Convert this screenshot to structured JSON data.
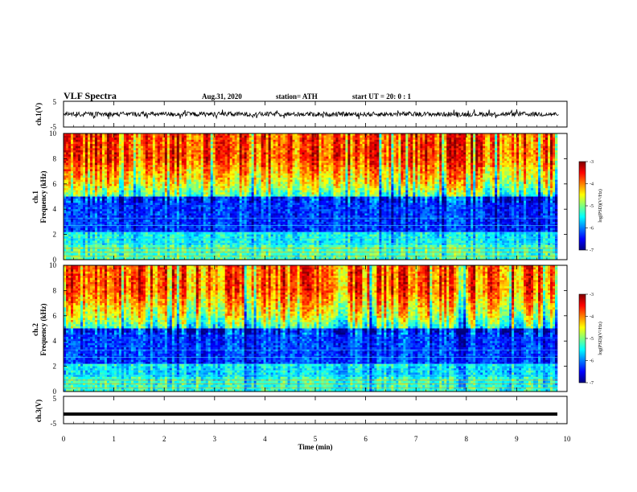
{
  "header": {
    "title": "VLF Spectra",
    "date": "Aug.31, 2020",
    "station": "station= ATH",
    "start": "start UT =  20: 0  : 1"
  },
  "chart_data": [
    {
      "type": "line",
      "id": "ch1-waveform",
      "ylabel": "ch.1(V)",
      "yticks": [
        "5",
        "-5"
      ],
      "ylim": [
        -5,
        5
      ],
      "x_range_min": [
        0,
        9.83
      ],
      "description_values": "noisy waveform roughly within -2..2 V"
    },
    {
      "type": "heatmap",
      "id": "ch1-spectrogram",
      "ylabel": "ch.1\nFrequency (kHz)",
      "ylabel_lines": [
        "ch.1",
        "Frequency (kHz)"
      ],
      "yticks": [
        "0",
        "2",
        "4",
        "6",
        "8",
        "10"
      ],
      "ylim": [
        0,
        10
      ],
      "colorbar": {
        "label": "log(PSD)(V²/Hz)",
        "ticks": [
          "-3",
          "-4",
          "-5",
          "-6",
          "-7"
        ],
        "range": [
          -7,
          -3
        ]
      }
    },
    {
      "type": "heatmap",
      "id": "ch2-spectrogram",
      "ylabel_lines": [
        "ch.2",
        "Frequency (kHz)"
      ],
      "yticks": [
        "0",
        "2",
        "4",
        "6",
        "8",
        "10"
      ],
      "ylim": [
        0,
        10
      ],
      "colorbar": {
        "label": "log(PSD)(V²/Hz)",
        "ticks": [
          "-3",
          "-4",
          "-5",
          "-6",
          "-7"
        ],
        "range": [
          -7,
          -3
        ]
      }
    },
    {
      "type": "line",
      "id": "ch3-waveform",
      "ylabel": "ch.3(V)",
      "yticks": [
        "5",
        "-5"
      ],
      "ylim": [
        -5,
        5
      ],
      "level": -1.5
    }
  ],
  "xaxis": {
    "label": "Time  (min)",
    "ticks": [
      "0",
      "1",
      "2",
      "3",
      "4",
      "5",
      "6",
      "7",
      "8",
      "9",
      "10"
    ],
    "range": [
      0,
      10
    ]
  },
  "colors": {
    "jet": [
      "#00007f",
      "#0000ff",
      "#007fff",
      "#00ffff",
      "#7fff7f",
      "#ffff00",
      "#ff7f00",
      "#ff0000",
      "#7f0000"
    ]
  }
}
